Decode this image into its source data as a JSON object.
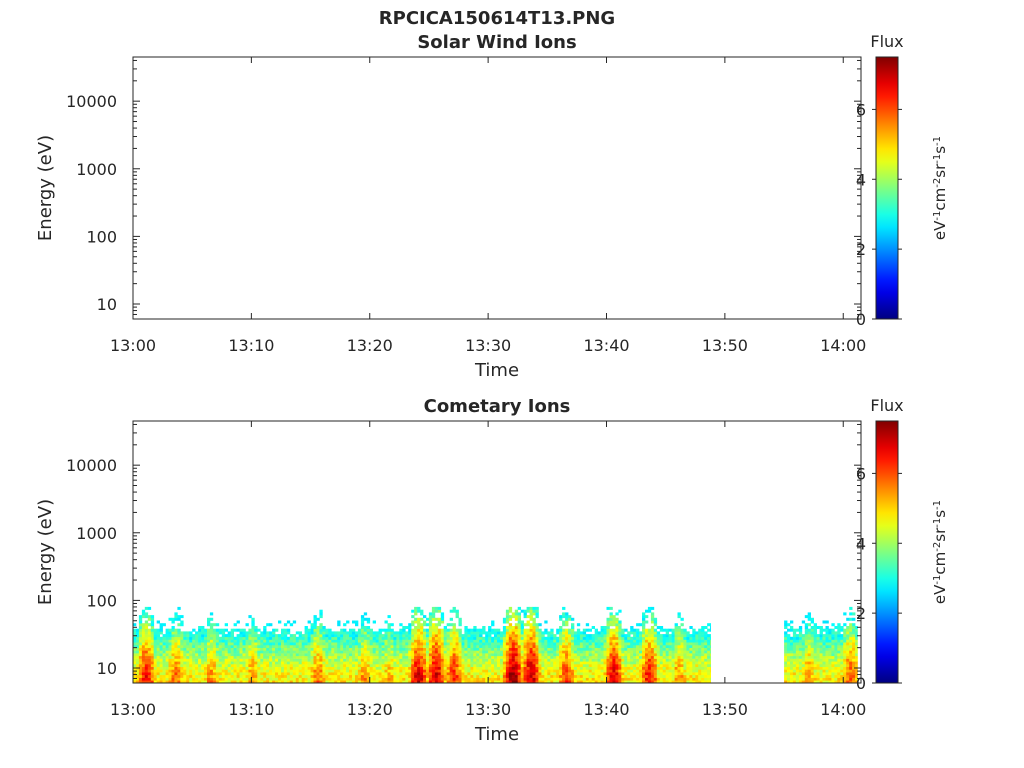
{
  "figure": {
    "title": "RPCICA150614T13.PNG"
  },
  "chart_data": [
    {
      "type": "heatmap",
      "title": "Solar Wind Ions",
      "xlabel": "Time",
      "ylabel": "Energy (eV)",
      "x_ticks": [
        "13:00",
        "13:10",
        "13:20",
        "13:30",
        "13:40",
        "13:50",
        "14:00"
      ],
      "x_range_minutes": [
        0,
        61.5
      ],
      "y_scale": "log",
      "y_range_ev": [
        6,
        45000
      ],
      "y_ticks": [
        "10",
        "100",
        "1000",
        "10000"
      ],
      "colorbar": {
        "title": "Flux",
        "label": "eV-1cm-2sr-1s-1",
        "range": [
          0,
          7.5
        ],
        "ticks": [
          "0",
          "2",
          "4",
          "6"
        ],
        "colormap": "jet"
      },
      "data_segments": []
    },
    {
      "type": "heatmap",
      "title": "Cometary Ions",
      "xlabel": "Time",
      "ylabel": "Energy (eV)",
      "x_ticks": [
        "13:00",
        "13:10",
        "13:20",
        "13:30",
        "13:40",
        "13:50",
        "14:00"
      ],
      "x_range_minutes": [
        0,
        61.5
      ],
      "y_scale": "log",
      "y_range_ev": [
        6,
        45000
      ],
      "y_ticks": [
        "10",
        "100",
        "1000",
        "10000"
      ],
      "colorbar": {
        "title": "Flux",
        "label": "eV-1cm-2sr-1s-1",
        "range": [
          0,
          7.5
        ],
        "ticks": [
          "0",
          "2",
          "4",
          "6"
        ],
        "colormap": "jet"
      },
      "energy_band_ev": [
        6,
        80
      ],
      "data_segments": [
        {
          "start_min": 0,
          "end_min": 48.8
        },
        {
          "start_min": 55.0,
          "end_min": 61.2
        }
      ],
      "flux_peaks": [
        {
          "time_min": 1.0,
          "flux": 6.5
        },
        {
          "time_min": 3.5,
          "flux": 5.8
        },
        {
          "time_min": 6.5,
          "flux": 5.6
        },
        {
          "time_min": 10.0,
          "flux": 5.5
        },
        {
          "time_min": 15.5,
          "flux": 5.8
        },
        {
          "time_min": 19.5,
          "flux": 5.6
        },
        {
          "time_min": 21.5,
          "flux": 5.3
        },
        {
          "time_min": 24.0,
          "flux": 6.8
        },
        {
          "time_min": 25.5,
          "flux": 6.9
        },
        {
          "time_min": 27.0,
          "flux": 6.3
        },
        {
          "time_min": 32.0,
          "flux": 7.3
        },
        {
          "time_min": 33.5,
          "flux": 7.0
        },
        {
          "time_min": 36.5,
          "flux": 6.2
        },
        {
          "time_min": 40.5,
          "flux": 6.7
        },
        {
          "time_min": 43.5,
          "flux": 6.5
        },
        {
          "time_min": 46.0,
          "flux": 5.6
        },
        {
          "time_min": 57.0,
          "flux": 5.5
        },
        {
          "time_min": 60.5,
          "flux": 6.0
        }
      ]
    }
  ]
}
